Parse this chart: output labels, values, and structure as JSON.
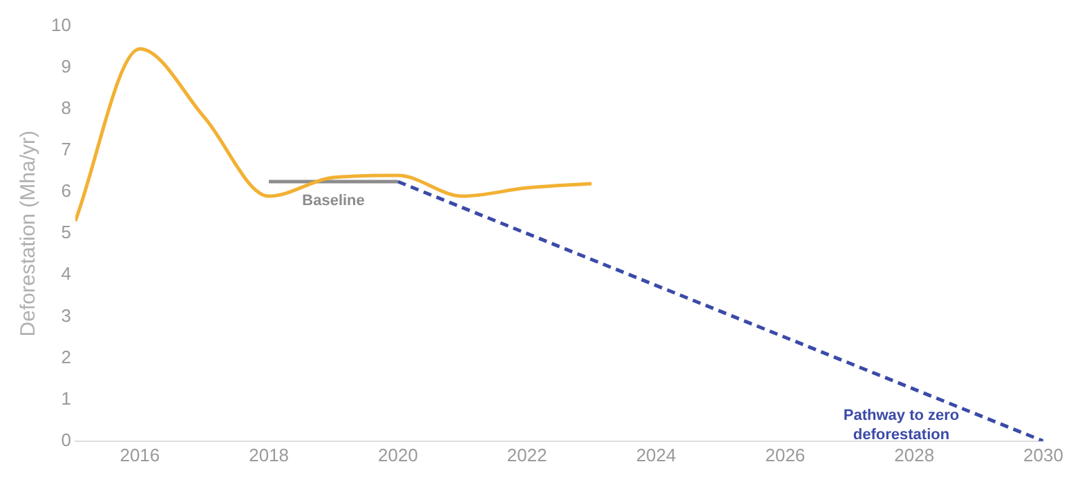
{
  "chart_data": {
    "type": "line",
    "ylabel": "Deforestation (Mha/yr)",
    "xlim": [
      2015,
      2030
    ],
    "xticks": [
      2016,
      2018,
      2020,
      2022,
      2024,
      2026,
      2028,
      2030
    ],
    "ylim": [
      0,
      10
    ],
    "yticks": [
      0,
      1,
      2,
      3,
      4,
      5,
      6,
      7,
      8,
      9,
      10
    ],
    "grid": false,
    "legend": false,
    "marker": "none",
    "series": [
      {
        "color": "#f2b134",
        "x": [
          2015,
          2016,
          2017,
          2018,
          2019,
          2020,
          2021,
          2022,
          2023
        ],
        "values": [
          5.3,
          9.45,
          7.8,
          5.9,
          6.35,
          6.4,
          5.9,
          6.1,
          6.2
        ]
      },
      {
        "name": "Baseline",
        "color": "#8c8c8c",
        "x": [
          2018,
          2020
        ],
        "values": [
          6.25,
          6.25
        ]
      },
      {
        "name": "Pathway to zero deforestation",
        "color": "#3b4aa8",
        "line_style": "dashed",
        "x": [
          2020,
          2030
        ],
        "values": [
          6.25,
          0
        ]
      }
    ]
  }
}
